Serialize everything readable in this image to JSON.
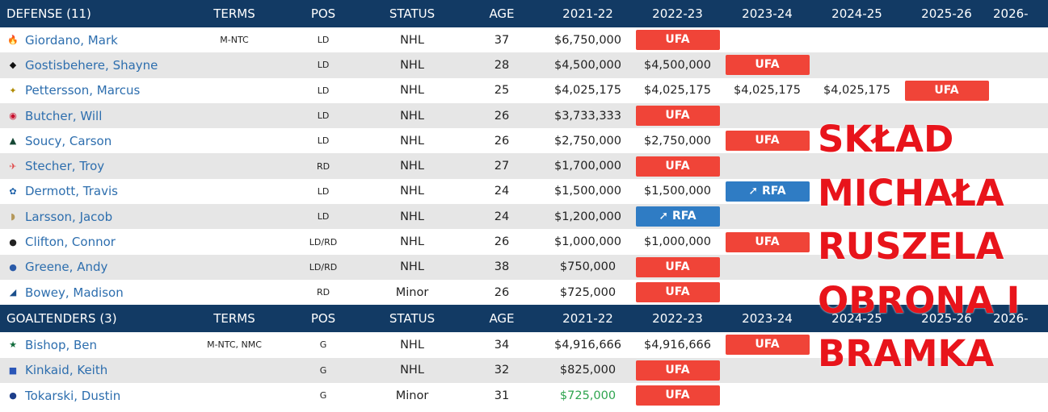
{
  "defense": {
    "header": [
      "DEFENSE (11)",
      "TERMS",
      "POS",
      "STATUS",
      "AGE",
      "2021-22",
      "2022-23",
      "2023-24",
      "2024-25",
      "2025-26",
      "2026-"
    ],
    "rows": [
      {
        "team_icon": "flames-logo-icon",
        "logo_glyph": "🔥",
        "logo_color": "#c8102e",
        "name": "Giordano, Mark",
        "terms": "M-NTC",
        "pos": "LD",
        "status": "NHL",
        "age": "37",
        "s2122": "$6,750,000",
        "s2223": "UFA",
        "s2324": "",
        "s2425": "",
        "s2526": ""
      },
      {
        "team_icon": "flyers-logo-icon",
        "logo_glyph": "◆",
        "logo_color": "#111111",
        "name": "Gostisbehere, Shayne",
        "terms": "",
        "pos": "LD",
        "status": "NHL",
        "age": "28",
        "s2122": "$4,500,000",
        "s2223": "$4,500,000",
        "s2324": "UFA",
        "s2425": "",
        "s2526": ""
      },
      {
        "team_icon": "penguins-logo-icon",
        "logo_glyph": "✦",
        "logo_color": "#b08a00",
        "name": "Pettersson, Marcus",
        "terms": "",
        "pos": "LD",
        "status": "NHL",
        "age": "25",
        "s2122": "$4,025,175",
        "s2223": "$4,025,175",
        "s2324": "$4,025,175",
        "s2425": "$4,025,175",
        "s2526": "UFA"
      },
      {
        "team_icon": "devils-logo-icon",
        "logo_glyph": "◉",
        "logo_color": "#c8102e",
        "name": "Butcher, Will",
        "terms": "",
        "pos": "LD",
        "status": "NHL",
        "age": "26",
        "s2122": "$3,733,333",
        "s2223": "UFA",
        "s2324": "",
        "s2425": "",
        "s2526": ""
      },
      {
        "team_icon": "wild-logo-icon",
        "logo_glyph": "▲",
        "logo_color": "#154734",
        "name": "Soucy, Carson",
        "terms": "",
        "pos": "LD",
        "status": "NHL",
        "age": "26",
        "s2122": "$2,750,000",
        "s2223": "$2,750,000",
        "s2324": "UFA",
        "s2425": "",
        "s2526": ""
      },
      {
        "team_icon": "red-wings-logo-icon",
        "logo_glyph": "✈",
        "logo_color": "#e04a4a",
        "name": "Stecher, Troy",
        "terms": "",
        "pos": "RD",
        "status": "NHL",
        "age": "27",
        "s2122": "$1,700,000",
        "s2223": "UFA",
        "s2324": "",
        "s2425": "",
        "s2526": ""
      },
      {
        "team_icon": "maple-leafs-logo-icon",
        "logo_glyph": "✿",
        "logo_color": "#1b5fa8",
        "name": "Dermott, Travis",
        "terms": "",
        "pos": "LD",
        "status": "NHL",
        "age": "24",
        "s2122": "$1,500,000",
        "s2223": "$1,500,000",
        "s2324": "RFA",
        "s2425": "",
        "s2526": ""
      },
      {
        "team_icon": "ducks-logo-icon",
        "logo_glyph": "◗",
        "logo_color": "#b5985a",
        "name": "Larsson, Jacob",
        "terms": "",
        "pos": "LD",
        "status": "NHL",
        "age": "24",
        "s2122": "$1,200,000",
        "s2223": "RFA",
        "s2324": "",
        "s2425": "",
        "s2526": ""
      },
      {
        "team_icon": "bruins-logo-icon",
        "logo_glyph": "●",
        "logo_color": "#222222",
        "name": "Clifton, Connor",
        "terms": "",
        "pos": "LD/RD",
        "status": "NHL",
        "age": "26",
        "s2122": "$1,000,000",
        "s2223": "$1,000,000",
        "s2324": "UFA",
        "s2425": "",
        "s2526": ""
      },
      {
        "team_icon": "islanders-logo-icon",
        "logo_glyph": "●",
        "logo_color": "#2a5aa8",
        "name": "Greene, Andy",
        "terms": "",
        "pos": "LD/RD",
        "status": "NHL",
        "age": "38",
        "s2122": "$750,000",
        "s2223": "UFA",
        "s2324": "",
        "s2425": "",
        "s2526": ""
      },
      {
        "team_icon": "canucks-logo-icon",
        "logo_glyph": "◢",
        "logo_color": "#1b4f8c",
        "name": "Bowey, Madison",
        "terms": "",
        "pos": "RD",
        "status": "Minor",
        "age": "26",
        "s2122": "$725,000",
        "s2223": "UFA",
        "s2324": "",
        "s2425": "",
        "s2526": ""
      }
    ]
  },
  "goaltenders": {
    "header": [
      "GOALTENDERS (3)",
      "TERMS",
      "POS",
      "STATUS",
      "AGE",
      "2021-22",
      "2022-23",
      "2023-24",
      "2024-25",
      "2025-26",
      "2026-"
    ],
    "rows": [
      {
        "team_icon": "stars-logo-icon",
        "logo_glyph": "★",
        "logo_color": "#0f6b3b",
        "name": "Bishop, Ben",
        "terms": "M-NTC, NMC",
        "pos": "G",
        "status": "NHL",
        "age": "34",
        "s2122": "$4,916,666",
        "s2223": "$4,916,666",
        "s2324": "UFA",
        "s2425": "",
        "s2526": ""
      },
      {
        "team_icon": "rangers-logo-icon",
        "logo_glyph": "■",
        "logo_color": "#2a56b8",
        "name": "Kinkaid, Keith",
        "terms": "",
        "pos": "G",
        "status": "NHL",
        "age": "32",
        "s2122": "$825,000",
        "s2223": "UFA",
        "s2324": "",
        "s2425": "",
        "s2526": ""
      },
      {
        "team_icon": "sabres-logo-icon",
        "logo_glyph": "●",
        "logo_color": "#1d3e8a",
        "name": "Tokarski, Dustin",
        "terms": "",
        "pos": "G",
        "status": "Minor",
        "age": "31",
        "s2122": "$725,000",
        "s2223": "UFA",
        "s2324": "",
        "s2425": "",
        "s2526": "",
        "s2122_color": "#2ea44f"
      }
    ]
  },
  "overlay_text": [
    "SKŁAD",
    "MICHAŁA",
    "RUSZELA",
    "OBRONA I",
    "BRAMKA"
  ],
  "colors": {
    "header_bg": "#123a64",
    "ufa": "#f04438",
    "rfa": "#2f7cc4",
    "link": "#2d6eae",
    "overlay": "#e8141b"
  }
}
